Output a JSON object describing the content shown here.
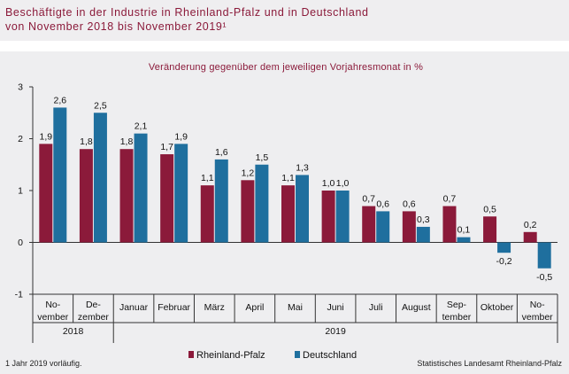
{
  "header": {
    "title_line1": "Beschäftigte in der Industrie in Rheinland-Pfalz und in Deutschland",
    "title_line2": "von November 2018 bis November 2019¹"
  },
  "footer": {
    "footnote": "1 Jahr 2019 vorläufig.",
    "source": "Statistisches Landesamt Rheinland-Pfalz"
  },
  "colors": {
    "rlp": "#8b1a3a",
    "de": "#1f6f9e",
    "title": "#8b1a3a"
  },
  "chart_data": {
    "type": "bar",
    "title": "Veränderung gegenüber dem jeweiligen Vorjahresmonat in %",
    "categories": [
      [
        "No-",
        "vember"
      ],
      [
        "De-",
        "zember"
      ],
      [
        "Januar"
      ],
      [
        "Februar"
      ],
      [
        "März"
      ],
      [
        "April"
      ],
      [
        "Mai"
      ],
      [
        "Juni"
      ],
      [
        "Juli"
      ],
      [
        "August"
      ],
      [
        "Sep-",
        "tember"
      ],
      [
        "Oktober"
      ],
      [
        "No-",
        "vember"
      ]
    ],
    "year_groups": [
      {
        "label": "2018",
        "from": 0,
        "to": 1
      },
      {
        "label": "2019",
        "from": 2,
        "to": 12
      }
    ],
    "series": [
      {
        "name": "Rheinland-Pfalz",
        "values": [
          1.9,
          1.8,
          1.8,
          1.7,
          1.1,
          1.2,
          1.1,
          1.0,
          0.7,
          0.6,
          0.7,
          0.5,
          0.2
        ],
        "labels": [
          "1,9",
          "1,8",
          "1,8",
          "1,7",
          "1,1",
          "1,2",
          "1,1",
          "1,0",
          "0,7",
          "0,6",
          "0,7",
          "0,5",
          "0,2"
        ]
      },
      {
        "name": "Deutschland",
        "values": [
          2.6,
          2.5,
          2.1,
          1.9,
          1.6,
          1.5,
          1.3,
          1.0,
          0.6,
          0.3,
          0.1,
          -0.2,
          -0.5
        ],
        "labels": [
          "2,6",
          "2,5",
          "2,1",
          "1,9",
          "1,6",
          "1,5",
          "1,3",
          "1,0",
          "0,6",
          "0,3",
          "0,1",
          "-0,2",
          "-0,5"
        ]
      }
    ],
    "yticks": [
      3,
      2,
      1,
      0,
      -1
    ],
    "ytick_labels": [
      "3",
      "2",
      "1",
      "0",
      "-1"
    ],
    "ylim": [
      -1,
      3
    ],
    "grid": false,
    "legend_position": "bottom-center"
  }
}
